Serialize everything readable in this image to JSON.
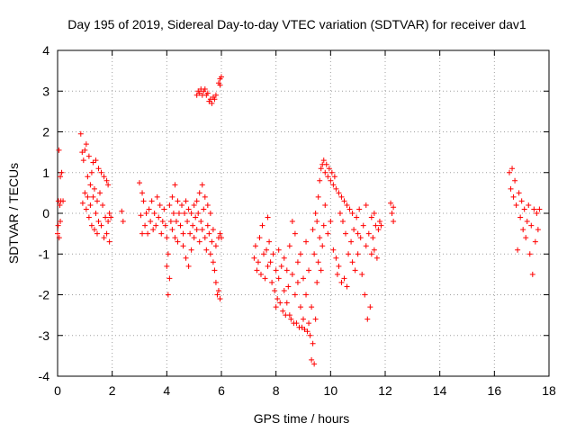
{
  "chart_data": {
    "type": "scatter",
    "title": "Day 195 of 2019, Sidereal Day-to-day VTEC variation (SDTVAR) for receiver dav1",
    "xlabel": "GPS time / hours",
    "ylabel": "SDTVAR / TECUs",
    "xlim": [
      0,
      18
    ],
    "ylim": [
      -4,
      4
    ],
    "xticks": [
      "0",
      "2",
      "4",
      "6",
      "8",
      "10",
      "12",
      "14",
      "16",
      "18"
    ],
    "yticks": [
      "4",
      "3",
      "2",
      "1",
      "0",
      "-1",
      "-2",
      "-3",
      "-4"
    ],
    "grid": true,
    "marker": "+",
    "series_color": "#ff0000",
    "series": [
      {
        "name": "SDTVAR",
        "points": [
          [
            0.0,
            -0.5
          ],
          [
            0.02,
            -0.3
          ],
          [
            0.03,
            0.3
          ],
          [
            0.05,
            1.55
          ],
          [
            0.06,
            -0.6
          ],
          [
            0.08,
            0.2
          ],
          [
            0.1,
            0.9
          ],
          [
            0.1,
            -0.2
          ],
          [
            0.12,
            0.3
          ],
          [
            0.15,
            1.0
          ],
          [
            0.2,
            0.3
          ],
          [
            0.85,
            1.95
          ],
          [
            0.9,
            1.5
          ],
          [
            0.92,
            0.25
          ],
          [
            0.95,
            1.3
          ],
          [
            1.0,
            1.55
          ],
          [
            1.0,
            0.5
          ],
          [
            1.05,
            1.7
          ],
          [
            1.05,
            0.1
          ],
          [
            1.1,
            0.9
          ],
          [
            1.1,
            0.4
          ],
          [
            1.15,
            1.4
          ],
          [
            1.15,
            -0.1
          ],
          [
            1.2,
            0.7
          ],
          [
            1.2,
            0.2
          ],
          [
            1.25,
            1.0
          ],
          [
            1.25,
            -0.3
          ],
          [
            1.3,
            0.4
          ],
          [
            1.3,
            1.25
          ],
          [
            1.35,
            0.6
          ],
          [
            1.35,
            -0.4
          ],
          [
            1.4,
            1.3
          ],
          [
            1.4,
            0.0
          ],
          [
            1.45,
            0.3
          ],
          [
            1.45,
            -0.5
          ],
          [
            1.5,
            1.1
          ],
          [
            1.5,
            -0.2
          ],
          [
            1.55,
            0.5
          ],
          [
            1.6,
            1.0
          ],
          [
            1.6,
            -0.3
          ],
          [
            1.65,
            0.2
          ],
          [
            1.7,
            0.9
          ],
          [
            1.7,
            -0.6
          ],
          [
            1.75,
            -0.1
          ],
          [
            1.8,
            0.8
          ],
          [
            1.8,
            -0.5
          ],
          [
            1.85,
            0.7
          ],
          [
            1.85,
            -0.2
          ],
          [
            1.9,
            -0.7
          ],
          [
            1.9,
            0.0
          ],
          [
            1.95,
            -0.1
          ],
          [
            2.35,
            0.05
          ],
          [
            2.4,
            -0.2
          ],
          [
            3.0,
            0.75
          ],
          [
            3.05,
            -0.05
          ],
          [
            3.1,
            0.5
          ],
          [
            3.1,
            -0.5
          ],
          [
            3.15,
            0.3
          ],
          [
            3.2,
            -0.3
          ],
          [
            3.25,
            0.0
          ],
          [
            3.3,
            -0.5
          ],
          [
            3.35,
            0.1
          ],
          [
            3.4,
            -0.2
          ],
          [
            3.45,
            0.3
          ],
          [
            3.5,
            -0.4
          ],
          [
            3.55,
            0.0
          ],
          [
            3.6,
            -0.3
          ],
          [
            3.65,
            0.4
          ],
          [
            3.7,
            -0.1
          ],
          [
            3.75,
            0.2
          ],
          [
            3.8,
            -0.5
          ],
          [
            3.85,
            -0.2
          ],
          [
            3.9,
            0.1
          ],
          [
            3.95,
            -0.3
          ],
          [
            4.0,
            -0.6
          ],
          [
            4.0,
            -1.3
          ],
          [
            4.05,
            -1.0
          ],
          [
            4.05,
            -2.0
          ],
          [
            4.1,
            0.2
          ],
          [
            4.1,
            -1.6
          ],
          [
            4.15,
            -0.2
          ],
          [
            4.2,
            0.4
          ],
          [
            4.2,
            -0.4
          ],
          [
            4.25,
            0.0
          ],
          [
            4.3,
            -0.6
          ],
          [
            4.3,
            0.7
          ],
          [
            4.35,
            -0.2
          ],
          [
            4.4,
            0.3
          ],
          [
            4.4,
            -0.7
          ],
          [
            4.45,
            0.0
          ],
          [
            4.5,
            -0.3
          ],
          [
            4.55,
            0.2
          ],
          [
            4.6,
            -0.5
          ],
          [
            4.6,
            -0.8
          ],
          [
            4.65,
            0.0
          ],
          [
            4.7,
            -1.1
          ],
          [
            4.7,
            0.3
          ],
          [
            4.75,
            -0.2
          ],
          [
            4.8,
            -1.3
          ],
          [
            4.8,
            0.1
          ],
          [
            4.85,
            -0.5
          ],
          [
            4.9,
            -0.9
          ],
          [
            4.9,
            0.0
          ],
          [
            4.95,
            -0.3
          ],
          [
            5.0,
            0.2
          ],
          [
            5.0,
            -0.6
          ],
          [
            5.05,
            -0.1
          ],
          [
            5.1,
            -0.4
          ],
          [
            5.1,
            0.3
          ],
          [
            5.15,
            0.0
          ],
          [
            5.2,
            -0.7
          ],
          [
            5.2,
            0.5
          ],
          [
            5.25,
            -0.2
          ],
          [
            5.3,
            0.7
          ],
          [
            5.3,
            -0.4
          ],
          [
            5.35,
            0.1
          ],
          [
            5.4,
            -0.6
          ],
          [
            5.4,
            0.4
          ],
          [
            5.45,
            -0.9
          ],
          [
            5.5,
            -0.3
          ],
          [
            5.5,
            0.2
          ],
          [
            5.55,
            -0.5
          ],
          [
            5.6,
            -1.0
          ],
          [
            5.6,
            0.0
          ],
          [
            5.65,
            -0.7
          ],
          [
            5.7,
            -1.2
          ],
          [
            5.7,
            -0.4
          ],
          [
            5.75,
            -1.4
          ],
          [
            5.8,
            -0.8
          ],
          [
            5.8,
            -1.7
          ],
          [
            5.85,
            -2.0
          ],
          [
            5.9,
            -0.6
          ],
          [
            5.9,
            -1.9
          ],
          [
            5.95,
            -2.1
          ],
          [
            5.95,
            -0.5
          ],
          [
            6.0,
            -0.6
          ],
          [
            5.1,
            2.9
          ],
          [
            5.15,
            3.0
          ],
          [
            5.2,
            2.95
          ],
          [
            5.25,
            3.05
          ],
          [
            5.3,
            2.9
          ],
          [
            5.35,
            3.0
          ],
          [
            5.4,
            3.05
          ],
          [
            5.45,
            2.9
          ],
          [
            5.5,
            2.95
          ],
          [
            5.55,
            2.75
          ],
          [
            5.6,
            2.8
          ],
          [
            5.65,
            2.7
          ],
          [
            5.7,
            2.85
          ],
          [
            5.75,
            2.8
          ],
          [
            5.8,
            2.9
          ],
          [
            5.9,
            3.2
          ],
          [
            5.95,
            3.3
          ],
          [
            6.0,
            3.35
          ],
          [
            5.95,
            3.15
          ],
          [
            7.2,
            -1.1
          ],
          [
            7.25,
            -0.8
          ],
          [
            7.3,
            -1.4
          ],
          [
            7.35,
            -1.2
          ],
          [
            7.4,
            -0.6
          ],
          [
            7.45,
            -1.5
          ],
          [
            7.5,
            -0.3
          ],
          [
            7.55,
            -1.0
          ],
          [
            7.6,
            -1.6
          ],
          [
            7.65,
            -0.9
          ],
          [
            7.7,
            -0.1
          ],
          [
            7.7,
            -1.3
          ],
          [
            7.75,
            -0.7
          ],
          [
            7.8,
            -1.2
          ],
          [
            7.85,
            -1.7
          ],
          [
            7.9,
            -1.0
          ],
          [
            7.95,
            -1.9
          ],
          [
            8.0,
            -1.4
          ],
          [
            8.0,
            -2.3
          ],
          [
            8.05,
            -2.1
          ],
          [
            8.1,
            -1.6
          ],
          [
            8.1,
            -0.9
          ],
          [
            8.15,
            -2.2
          ],
          [
            8.2,
            -1.3
          ],
          [
            8.25,
            -2.4
          ],
          [
            8.3,
            -1.9
          ],
          [
            8.3,
            -1.1
          ],
          [
            8.35,
            -2.5
          ],
          [
            8.4,
            -1.4
          ],
          [
            8.4,
            -2.2
          ],
          [
            8.45,
            -1.8
          ],
          [
            8.5,
            -2.5
          ],
          [
            8.5,
            -0.8
          ],
          [
            8.55,
            -2.6
          ],
          [
            8.6,
            -1.5
          ],
          [
            8.6,
            -0.2
          ],
          [
            8.65,
            -2.7
          ],
          [
            8.7,
            -2.0
          ],
          [
            8.7,
            -0.5
          ],
          [
            8.75,
            -2.7
          ],
          [
            8.8,
            -1.2
          ],
          [
            8.8,
            -1.7
          ],
          [
            8.85,
            -2.8
          ],
          [
            8.9,
            -2.3
          ],
          [
            8.9,
            -1.0
          ],
          [
            8.95,
            -2.8
          ],
          [
            9.0,
            -1.6
          ],
          [
            9.0,
            -2.6
          ],
          [
            9.05,
            -2.85
          ],
          [
            9.1,
            -2.0
          ],
          [
            9.1,
            -0.7
          ],
          [
            9.15,
            -2.9
          ],
          [
            9.2,
            -2.7
          ],
          [
            9.2,
            -1.4
          ],
          [
            9.25,
            -3.0
          ],
          [
            9.3,
            -3.6
          ],
          [
            9.3,
            -2.3
          ],
          [
            9.35,
            -3.2
          ],
          [
            9.35,
            -0.4
          ],
          [
            9.4,
            -3.7
          ],
          [
            9.4,
            -1.0
          ],
          [
            9.45,
            -2.6
          ],
          [
            9.45,
            0.0
          ],
          [
            9.5,
            -1.7
          ],
          [
            9.5,
            -0.2
          ],
          [
            9.55,
            0.4
          ],
          [
            9.55,
            -1.2
          ],
          [
            9.6,
            0.8
          ],
          [
            9.6,
            -0.6
          ],
          [
            9.65,
            1.1
          ],
          [
            9.65,
            -1.4
          ],
          [
            9.7,
            1.2
          ],
          [
            9.7,
            -0.8
          ],
          [
            9.75,
            1.3
          ],
          [
            9.75,
            -0.3
          ],
          [
            9.8,
            1.0
          ],
          [
            9.8,
            0.2
          ],
          [
            9.85,
            1.2
          ],
          [
            9.9,
            0.9
          ],
          [
            9.9,
            -0.5
          ],
          [
            9.95,
            1.1
          ],
          [
            10.0,
            0.8
          ],
          [
            10.0,
            -0.2
          ],
          [
            10.05,
            1.0
          ],
          [
            10.1,
            0.7
          ],
          [
            10.1,
            -0.9
          ],
          [
            10.15,
            0.9
          ],
          [
            10.2,
            -1.1
          ],
          [
            10.2,
            0.6
          ],
          [
            10.25,
            -1.5
          ],
          [
            10.3,
            0.5
          ],
          [
            10.3,
            -1.3
          ],
          [
            10.35,
            0.0
          ],
          [
            10.4,
            -1.7
          ],
          [
            10.4,
            0.4
          ],
          [
            10.45,
            -0.2
          ],
          [
            10.5,
            -1.6
          ],
          [
            10.5,
            0.3
          ],
          [
            10.55,
            -0.5
          ],
          [
            10.6,
            -1.8
          ],
          [
            10.6,
            0.2
          ],
          [
            10.65,
            -1.0
          ],
          [
            10.7,
            0.1
          ],
          [
            10.75,
            -0.7
          ],
          [
            10.8,
            -1.2
          ],
          [
            10.8,
            0.0
          ],
          [
            10.85,
            -0.4
          ],
          [
            10.9,
            -1.4
          ],
          [
            10.95,
            -0.1
          ],
          [
            11.0,
            -0.5
          ],
          [
            11.0,
            -1.0
          ],
          [
            11.05,
            0.1
          ],
          [
            11.1,
            -0.6
          ],
          [
            11.15,
            -1.5
          ],
          [
            11.2,
            -0.3
          ],
          [
            11.25,
            -2.0
          ],
          [
            11.3,
            -0.8
          ],
          [
            11.3,
            0.2
          ],
          [
            11.35,
            -2.6
          ],
          [
            11.4,
            -0.5
          ],
          [
            11.45,
            -2.3
          ],
          [
            11.5,
            -0.1
          ],
          [
            11.5,
            -1.0
          ],
          [
            11.55,
            -0.6
          ],
          [
            11.6,
            -0.9
          ],
          [
            11.6,
            0.0
          ],
          [
            11.65,
            -0.3
          ],
          [
            11.7,
            -1.1
          ],
          [
            11.75,
            -0.4
          ],
          [
            11.8,
            -0.2
          ],
          [
            11.85,
            -0.3
          ],
          [
            12.2,
            0.25
          ],
          [
            12.25,
            0.0
          ],
          [
            12.3,
            0.15
          ],
          [
            12.3,
            -0.2
          ],
          [
            16.55,
            1.0
          ],
          [
            16.6,
            0.6
          ],
          [
            16.65,
            1.1
          ],
          [
            16.7,
            0.4
          ],
          [
            16.75,
            0.8
          ],
          [
            16.8,
            0.2
          ],
          [
            16.85,
            -0.9
          ],
          [
            16.9,
            0.5
          ],
          [
            16.95,
            -0.1
          ],
          [
            17.0,
            0.3
          ],
          [
            17.05,
            -0.4
          ],
          [
            17.1,
            0.1
          ],
          [
            17.15,
            -0.6
          ],
          [
            17.2,
            -0.2
          ],
          [
            17.25,
            0.2
          ],
          [
            17.3,
            -1.0
          ],
          [
            17.35,
            -0.3
          ],
          [
            17.4,
            -1.5
          ],
          [
            17.45,
            0.1
          ],
          [
            17.5,
            -0.7
          ],
          [
            17.55,
            0.0
          ],
          [
            17.6,
            -0.4
          ],
          [
            17.65,
            0.1
          ]
        ]
      }
    ]
  }
}
